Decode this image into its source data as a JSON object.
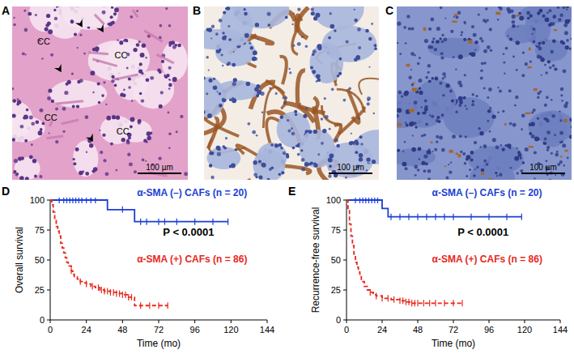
{
  "panels": [
    {
      "label": "A",
      "annotations": [
        "CC",
        "CC",
        "CC",
        "CC"
      ],
      "scale_bar": "100 µm"
    },
    {
      "label": "B",
      "scale_bar": "100 µm"
    },
    {
      "label": "C",
      "scale_bar": "100 µm"
    }
  ],
  "chart_data": [
    {
      "type": "survival",
      "title": "D",
      "x_label": "Time (mo)",
      "y_label": "Overall survival",
      "annotations": [
        "P < 0.0001"
      ],
      "xlim": [
        0,
        144
      ],
      "xticks": [
        0,
        24,
        48,
        72,
        96,
        120,
        144
      ],
      "ylim": [
        0,
        100
      ],
      "yticks": [
        0,
        25,
        50,
        75,
        100
      ],
      "series": [
        {
          "name": "α-SMA (–) CAFs (n = 20)",
          "color": "#1a3fd6",
          "line_style": "solid",
          "x": [
            0,
            38,
            56,
            118
          ],
          "values": [
            100,
            92,
            82,
            82
          ],
          "censored": [
            6,
            9,
            11,
            13,
            15,
            17,
            19,
            21,
            24,
            27,
            30,
            48,
            60,
            64,
            72,
            76,
            84,
            96,
            108,
            118
          ]
        },
        {
          "name": "α-SMA (+) CAFs (n = 86)",
          "color": "#e8281e",
          "line_style": "dashed",
          "x": [
            0,
            1,
            2,
            3,
            4,
            5,
            6,
            7,
            8,
            9,
            10,
            11,
            12,
            14,
            15,
            16,
            18,
            20,
            22,
            24,
            27,
            30,
            33,
            36,
            40,
            44,
            48,
            52,
            56,
            78
          ],
          "values": [
            100,
            96,
            90,
            84,
            78,
            74,
            70,
            64,
            60,
            56,
            52,
            48,
            45,
            41,
            38,
            36,
            34,
            32,
            31,
            30,
            28,
            27,
            25,
            24,
            23,
            22,
            21,
            19,
            12,
            12
          ],
          "censored": [
            14,
            20,
            24,
            28,
            32,
            34,
            36,
            38,
            40,
            42,
            44,
            46,
            48,
            50,
            52,
            54,
            60,
            66,
            72,
            78
          ]
        }
      ]
    },
    {
      "type": "survival",
      "title": "E",
      "x_label": "Time (mo)",
      "y_label": "Recurrence-free survival",
      "annotations": [
        "P < 0.0001"
      ],
      "xlim": [
        0,
        144
      ],
      "xticks": [
        0,
        24,
        48,
        72,
        96,
        120,
        144
      ],
      "ylim": [
        0,
        100
      ],
      "yticks": [
        0,
        25,
        50,
        75,
        100
      ],
      "series": [
        {
          "name": "α-SMA (–) CAFs (n = 20)",
          "color": "#1a3fd6",
          "line_style": "solid",
          "x": [
            0,
            24,
            28,
            118
          ],
          "values": [
            100,
            93,
            86,
            86
          ],
          "censored": [
            6,
            9,
            11,
            13,
            15,
            17,
            19,
            21,
            30,
            36,
            42,
            48,
            54,
            60,
            66,
            72,
            84,
            96,
            108,
            118
          ]
        },
        {
          "name": "α-SMA (+) CAFs (n = 86)",
          "color": "#e8281e",
          "line_style": "dashed",
          "x": [
            0,
            1,
            2,
            3,
            4,
            5,
            6,
            7,
            8,
            9,
            10,
            12,
            14,
            16,
            18,
            20,
            24,
            30,
            36,
            40,
            44,
            78
          ],
          "values": [
            100,
            92,
            80,
            70,
            62,
            55,
            48,
            44,
            40,
            36,
            32,
            28,
            25,
            23,
            21,
            20,
            18,
            17,
            16,
            15,
            14,
            14
          ],
          "censored": [
            16,
            20,
            24,
            28,
            32,
            36,
            38,
            40,
            42,
            44,
            46,
            48,
            52,
            56,
            60,
            66,
            72,
            78
          ]
        }
      ]
    }
  ]
}
